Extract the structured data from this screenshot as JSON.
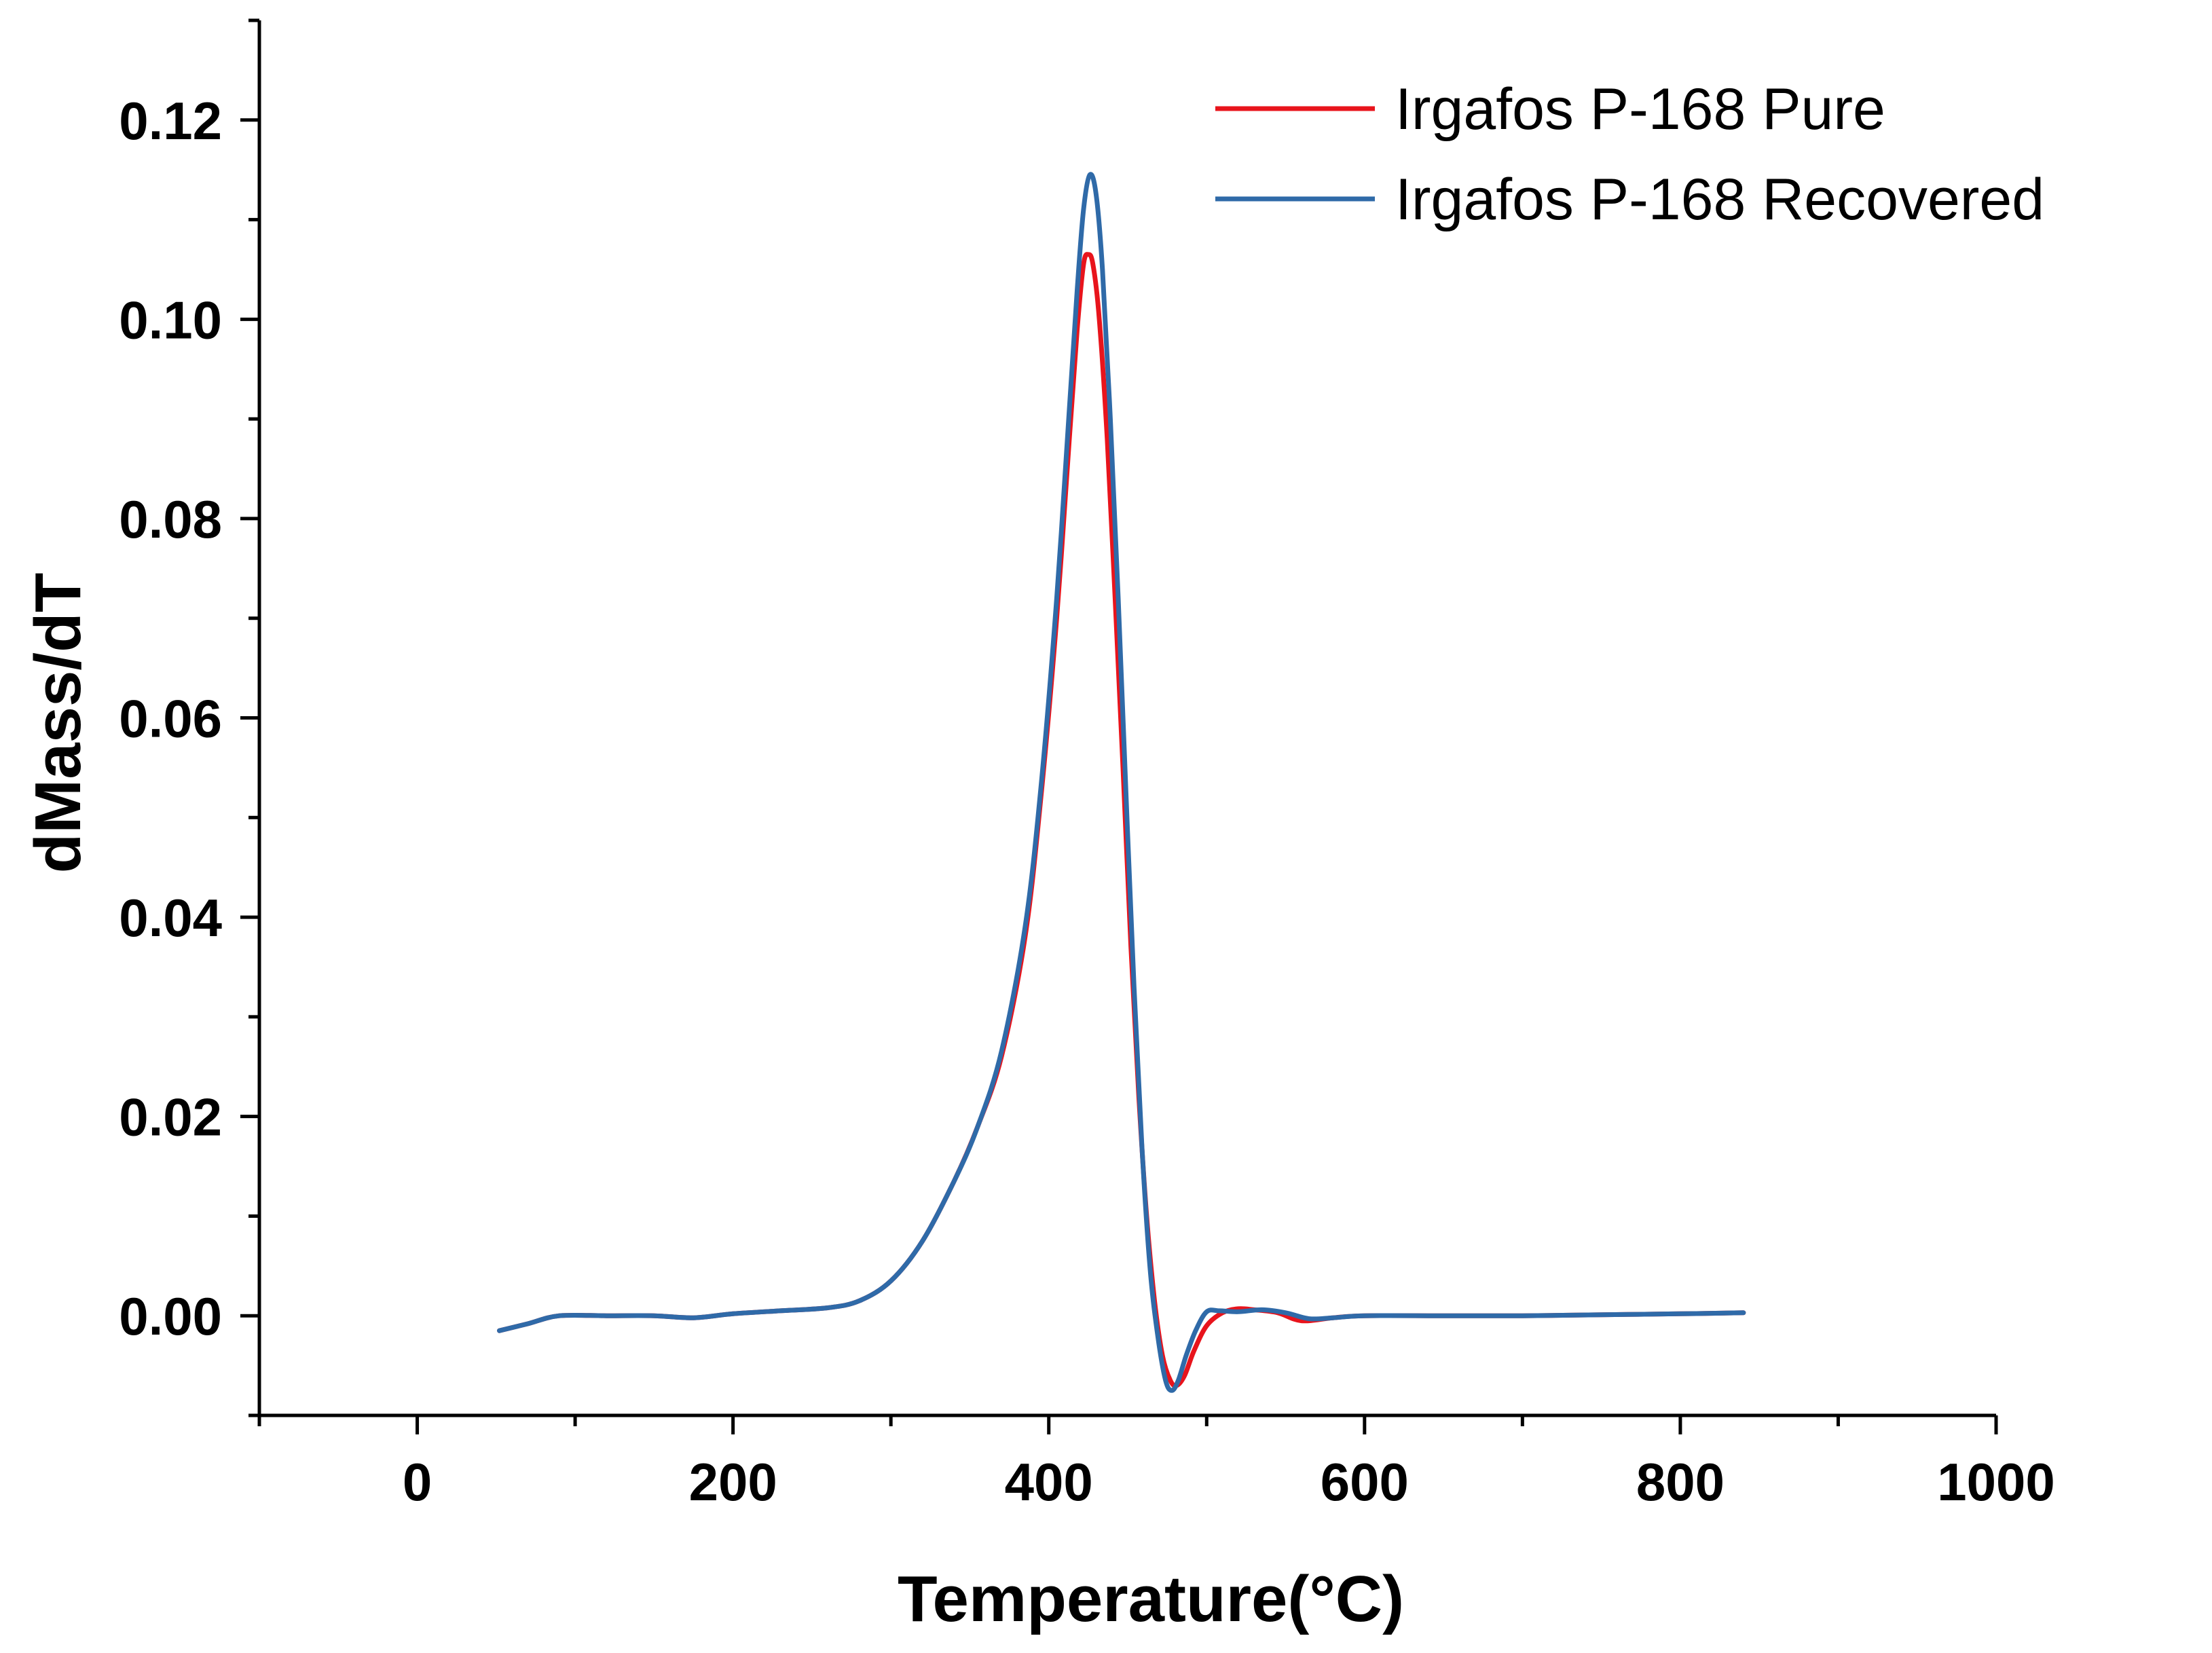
{
  "chart_data": {
    "type": "line",
    "title": "",
    "xlabel": "Temperature(°C)",
    "ylabel": "dMass/dT",
    "xlim": [
      -100,
      1000
    ],
    "ylim": [
      -0.01,
      0.13
    ],
    "x_ticks": [
      0,
      200,
      400,
      600,
      800,
      1000
    ],
    "x_tick_labels": [
      "0",
      "200",
      "400",
      "600",
      "800",
      "1000"
    ],
    "y_ticks": [
      0.0,
      0.02,
      0.04,
      0.06,
      0.08,
      0.1,
      0.12
    ],
    "y_tick_labels": [
      "0.00",
      "0.02",
      "0.04",
      "0.06",
      "0.08",
      "0.10",
      "0.12"
    ],
    "grid": false,
    "legend_position": "top-right",
    "series": [
      {
        "name": "Irgafos P-168 Pure",
        "color": "#e8141c",
        "points": [
          [
            52,
            -0.0015
          ],
          [
            70,
            -0.0008
          ],
          [
            90,
            0.0
          ],
          [
            120,
            0.0
          ],
          [
            150,
            0.0
          ],
          [
            175,
            -0.0002
          ],
          [
            200,
            0.0002
          ],
          [
            230,
            0.0005
          ],
          [
            260,
            0.0008
          ],
          [
            280,
            0.0015
          ],
          [
            300,
            0.0035
          ],
          [
            320,
            0.0075
          ],
          [
            340,
            0.0135
          ],
          [
            355,
            0.019
          ],
          [
            370,
            0.026
          ],
          [
            385,
            0.038
          ],
          [
            395,
            0.052
          ],
          [
            405,
            0.07
          ],
          [
            413,
            0.088
          ],
          [
            418,
            0.099
          ],
          [
            422,
            0.1055
          ],
          [
            425,
            0.1065
          ],
          [
            428,
            0.1055
          ],
          [
            432,
            0.1
          ],
          [
            437,
            0.088
          ],
          [
            442,
            0.072
          ],
          [
            447,
            0.055
          ],
          [
            452,
            0.037
          ],
          [
            457,
            0.022
          ],
          [
            462,
            0.01
          ],
          [
            467,
            0.0015
          ],
          [
            472,
            -0.004
          ],
          [
            477,
            -0.0065
          ],
          [
            481,
            -0.007
          ],
          [
            486,
            -0.006
          ],
          [
            492,
            -0.0035
          ],
          [
            500,
            -0.001
          ],
          [
            510,
            0.0003
          ],
          [
            520,
            0.0007
          ],
          [
            530,
            0.0006
          ],
          [
            545,
            0.0003
          ],
          [
            560,
            -0.0005
          ],
          [
            580,
            -0.0002
          ],
          [
            600,
            0.0
          ],
          [
            650,
            0.0
          ],
          [
            700,
            0.0
          ],
          [
            750,
            0.0001
          ],
          [
            800,
            0.0002
          ],
          [
            840,
            0.0003
          ]
        ]
      },
      {
        "name": "Irgafos P-168 Recovered",
        "color": "#2f6aa8",
        "points": [
          [
            52,
            -0.0015
          ],
          [
            70,
            -0.0008
          ],
          [
            90,
            0.0
          ],
          [
            120,
            0.0
          ],
          [
            150,
            0.0
          ],
          [
            175,
            -0.0002
          ],
          [
            200,
            0.0002
          ],
          [
            230,
            0.0005
          ],
          [
            260,
            0.0008
          ],
          [
            280,
            0.0015
          ],
          [
            300,
            0.0035
          ],
          [
            320,
            0.0075
          ],
          [
            340,
            0.0135
          ],
          [
            355,
            0.019
          ],
          [
            370,
            0.0265
          ],
          [
            385,
            0.039
          ],
          [
            395,
            0.053
          ],
          [
            405,
            0.072
          ],
          [
            413,
            0.091
          ],
          [
            418,
            0.103
          ],
          [
            422,
            0.111
          ],
          [
            426,
            0.1145
          ],
          [
            430,
            0.1125
          ],
          [
            434,
            0.105
          ],
          [
            439,
            0.09
          ],
          [
            444,
            0.072
          ],
          [
            449,
            0.052
          ],
          [
            454,
            0.033
          ],
          [
            459,
            0.017
          ],
          [
            464,
            0.005
          ],
          [
            469,
            -0.002
          ],
          [
            474,
            -0.0065
          ],
          [
            478,
            -0.0075
          ],
          [
            482,
            -0.0065
          ],
          [
            487,
            -0.004
          ],
          [
            493,
            -0.0015
          ],
          [
            500,
            0.0004
          ],
          [
            508,
            0.0005
          ],
          [
            520,
            0.0004
          ],
          [
            535,
            0.0006
          ],
          [
            550,
            0.0003
          ],
          [
            565,
            -0.0003
          ],
          [
            580,
            -0.0002
          ],
          [
            600,
            0.0
          ],
          [
            650,
            0.0
          ],
          [
            700,
            0.0
          ],
          [
            750,
            0.0001
          ],
          [
            800,
            0.0002
          ],
          [
            840,
            0.0003
          ]
        ]
      }
    ]
  }
}
